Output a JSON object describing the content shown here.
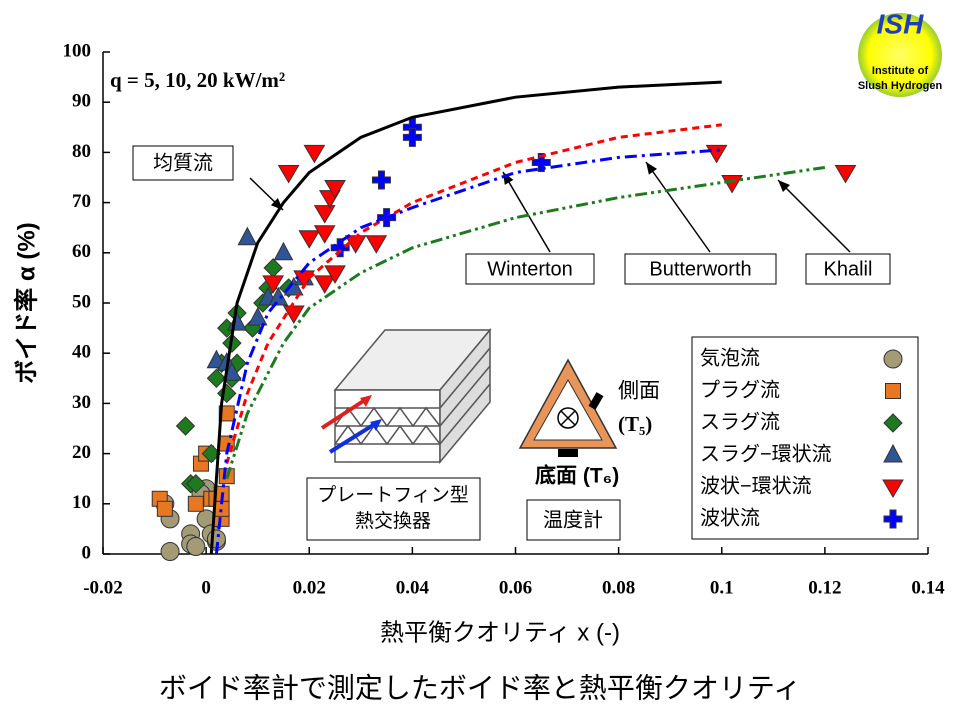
{
  "chart_data": {
    "type": "scatter",
    "xlabel": "熱平衡クオリティ x (-)",
    "ylabel": "ボイド率 α (%)",
    "caption": "ボイド率計で測定したボイド率と熱平衡クオリティ",
    "annotation": "q = 5, 10, 20 kW/m²",
    "xlim": [
      -0.02,
      0.14
    ],
    "xticks": [
      -0.02,
      0,
      0.02,
      0.04,
      0.06,
      0.08,
      0.1,
      0.12,
      0.14
    ],
    "ylim": [
      0,
      100
    ],
    "yticks": [
      0,
      10,
      20,
      30,
      40,
      50,
      60,
      70,
      80,
      90,
      100
    ],
    "legend": "lower right",
    "series": [
      {
        "name": "気泡流",
        "color": "#a39a76",
        "marker": "circle",
        "x": [
          -0.008,
          -0.007,
          -0.007,
          -0.003,
          -0.003,
          -0.002,
          0,
          0,
          0.001,
          0.002,
          0.002,
          -0.001
        ],
        "values": [
          10,
          7,
          0.5,
          4,
          2,
          1.5,
          7,
          13,
          4,
          2.5,
          3,
          12
        ]
      },
      {
        "name": "プラグ流",
        "color": "#e87722",
        "marker": "square",
        "x": [
          -0.009,
          -0.008,
          -0.002,
          -0.001,
          0,
          0.001,
          0.002,
          0.003,
          0.003,
          0.003,
          0.004,
          0.004,
          0.004
        ],
        "values": [
          11,
          9,
          10,
          18,
          20,
          11,
          11,
          7,
          9,
          12,
          15.5,
          22,
          28
        ]
      },
      {
        "name": "スラグ流",
        "color": "#1e7a1e",
        "marker": "diamond",
        "x": [
          -0.004,
          -0.003,
          -0.002,
          0.001,
          0.002,
          0.003,
          0.004,
          0.004,
          0.005,
          0.005,
          0.006,
          0.006,
          0.009,
          0.011,
          0.012,
          0.013,
          0.016
        ],
        "values": [
          25.5,
          14,
          14,
          20,
          35,
          38,
          45,
          32,
          35,
          42,
          38,
          48,
          45,
          50,
          53,
          57,
          53
        ]
      },
      {
        "name": "スラグ−環状流",
        "color": "#2f5597",
        "marker": "triangle",
        "x": [
          0.002,
          0.004,
          0.005,
          0.006,
          0.008,
          0.01,
          0.012,
          0.014,
          0.015,
          0.017,
          0.019
        ],
        "values": [
          38.5,
          38,
          36,
          46,
          63,
          47,
          51,
          51,
          60,
          53,
          55
        ]
      },
      {
        "name": "波状−環状流",
        "color": "#ff0000",
        "marker": "triangle-down",
        "x": [
          0.016,
          0.017,
          0.013,
          0.021,
          0.019,
          0.02,
          0.023,
          0.023,
          0.023,
          0.024,
          0.025,
          0.025,
          0.029,
          0.033,
          0.099,
          0.102,
          0.124
        ],
        "values": [
          76,
          48,
          54,
          80,
          55,
          63,
          54,
          64,
          68,
          71,
          73,
          56,
          62,
          62,
          80,
          74,
          76
        ]
      },
      {
        "name": "波状流",
        "color": "#0000ff",
        "marker": "plus",
        "x": [
          0.026,
          0.034,
          0.035,
          0.04,
          0.04,
          0.065
        ],
        "values": [
          61,
          74.5,
          67,
          85,
          83,
          78
        ]
      },
      {
        "name": "均質流",
        "color": "#000000",
        "line": "solid",
        "x": [
          0.001,
          0.003,
          0.006,
          0.01,
          0.015,
          0.02,
          0.03,
          0.04,
          0.06,
          0.08,
          0.1
        ],
        "values": [
          0,
          30,
          50,
          62,
          70,
          76,
          83,
          87,
          91,
          93,
          94
        ]
      },
      {
        "name": "Winterton",
        "color": "#ff0000",
        "line": "dashed",
        "x": [
          0.004,
          0.008,
          0.012,
          0.02,
          0.03,
          0.04,
          0.06,
          0.08,
          0.1
        ],
        "values": [
          18,
          32,
          42,
          55,
          64,
          70,
          78,
          83,
          85.5
        ]
      },
      {
        "name": "Butterworth",
        "color": "#0000ff",
        "line": "dashdot",
        "x": [
          0.002,
          0.004,
          0.008,
          0.012,
          0.02,
          0.03,
          0.04,
          0.06,
          0.08,
          0.1
        ],
        "values": [
          0,
          20,
          38,
          48,
          58,
          65,
          69,
          76,
          79,
          80.5
        ]
      },
      {
        "name": "Khalil",
        "color": "#1e7a1e",
        "line": "dashdotdot",
        "x": [
          0.004,
          0.008,
          0.015,
          0.02,
          0.03,
          0.04,
          0.06,
          0.08,
          0.1,
          0.12
        ],
        "values": [
          15,
          28,
          42,
          49,
          56,
          61,
          67,
          71,
          74,
          77
        ]
      }
    ]
  },
  "inset": {
    "exchanger": [
      "プレートフィン型",
      "熱交換器"
    ],
    "thermometer": "温度計",
    "side": "側面",
    "side_sensor": "(T₅)",
    "bottom": "底面 (T₆)"
  },
  "logo": {
    "title": "ISH",
    "line1": "Institute of",
    "line2": "Slush Hydrogen"
  }
}
